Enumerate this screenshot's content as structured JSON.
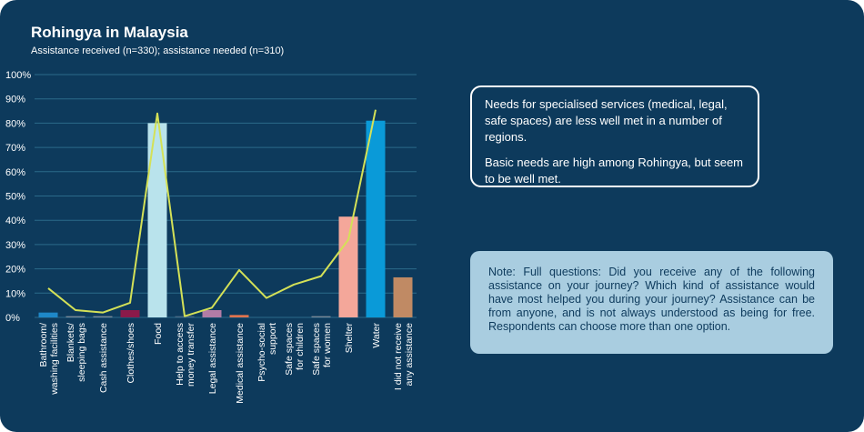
{
  "title": "Rohingya in Malaysia",
  "subtitle": "Assistance received (n=330); assistance needed (n=310)",
  "callout": {
    "line1": "Needs for specialised services (medical, legal, safe spaces) are less well met in a number of regions.",
    "line2": "Basic needs are high among Rohingya, but seem to be well met."
  },
  "note": "Note: Full questions: Did you receive any of the following assistance on your journey? Which kind of assistance would have most helped you during your journey? Assistance can be from anyone, and is not always understood as being for free. Respondents can choose more than one option.",
  "colors": {
    "background": "#0d3a5c",
    "line": "#d4e157",
    "grid": "#2b6a8a"
  },
  "chart_data": {
    "type": "bar",
    "ylim": [
      0,
      100
    ],
    "yticks": [
      0,
      10,
      20,
      30,
      40,
      50,
      60,
      70,
      80,
      90,
      100
    ],
    "ytick_labels": [
      "0%",
      "10%",
      "20%",
      "30%",
      "40%",
      "50%",
      "60%",
      "70%",
      "80%",
      "90%",
      "100%"
    ],
    "categories": [
      [
        "Bathroom/",
        "washing facilities"
      ],
      [
        "Blankets/",
        "sleeping bags"
      ],
      [
        "Cash assistance"
      ],
      [
        "Clothes/shoes"
      ],
      [
        "Food"
      ],
      [
        "Help to access",
        "money transfer"
      ],
      [
        "Legal assistance"
      ],
      [
        "Medical assistance"
      ],
      [
        "Psycho-social",
        "support"
      ],
      [
        "Safe spaces",
        "for children"
      ],
      [
        "Safe spaces",
        "for women"
      ],
      [
        "Shelter"
      ],
      [
        "Water"
      ],
      [
        "I did not receive",
        "any assistance"
      ]
    ],
    "series": [
      {
        "type": "bar",
        "values": [
          2,
          0.5,
          0.5,
          3,
          80,
          0.5,
          3,
          1,
          0,
          0,
          0.5,
          41.5,
          81,
          16.5
        ],
        "colors": [
          "#1e88c8",
          "#7a8a99",
          "#7a8a99",
          "#8b1a4a",
          "#b9e3ec",
          "#4a6a85",
          "#b27ca6",
          "#e0744e",
          "#0d3a5c",
          "#0d3a5c",
          "#7a8a99",
          "#f4a79a",
          "#0a9ad8",
          "#c08a64"
        ]
      },
      {
        "type": "line",
        "values": [
          12,
          3,
          2,
          6,
          84,
          0.5,
          4,
          19.5,
          8,
          13.5,
          17,
          32,
          85.5,
          null
        ]
      }
    ]
  }
}
